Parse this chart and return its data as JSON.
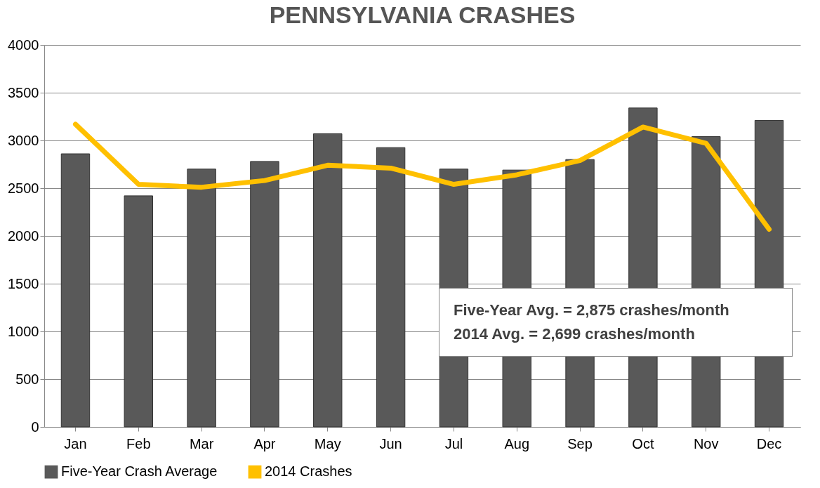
{
  "chart_data": {
    "type": "bar",
    "title": "PENNSYLVANIA CRASHES",
    "categories": [
      "Jan",
      "Feb",
      "Mar",
      "Apr",
      "May",
      "Jun",
      "Jul",
      "Aug",
      "Sep",
      "Oct",
      "Nov",
      "Dec"
    ],
    "series": [
      {
        "name": "Five-Year Crash Average",
        "color": "#595959",
        "values": [
          2860,
          2420,
          2700,
          2780,
          3070,
          2925,
          2700,
          2690,
          2800,
          3340,
          3040,
          3210
        ]
      },
      {
        "name": "2014 Crashes",
        "type": "line",
        "color": "#ffc000",
        "values": [
          3170,
          2540,
          2510,
          2580,
          2740,
          2710,
          2540,
          2640,
          2790,
          3140,
          2970,
          2070
        ]
      }
    ],
    "ylim": [
      0,
      4000
    ],
    "yticks": [
      0,
      500,
      1000,
      1500,
      2000,
      2500,
      3000,
      3500,
      4000
    ],
    "grid": "y",
    "legend": "bottom",
    "annotations": [
      "Five-Year Avg. = 2,875 crashes/month",
      "2014 Avg. = 2,699 crashes/month"
    ]
  }
}
